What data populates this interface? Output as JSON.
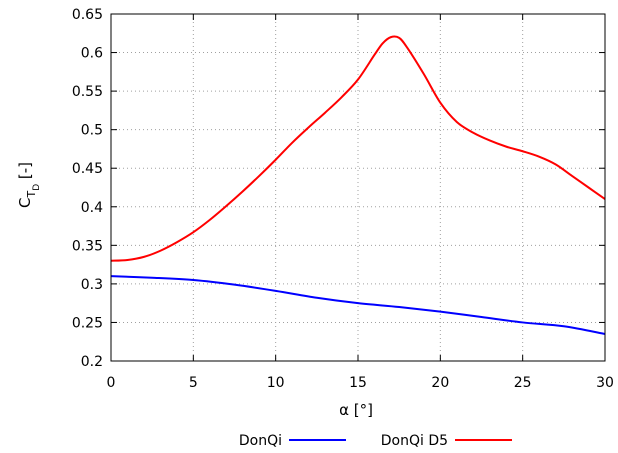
{
  "chart_data": {
    "type": "line",
    "title": "",
    "xlabel": "α [°]",
    "ylabel": {
      "main": "C",
      "sub": "T",
      "subsub": "D",
      "suffix": " [-]"
    },
    "xlim": [
      0,
      30
    ],
    "ylim": [
      0.2,
      0.65
    ],
    "x_ticks": [
      0,
      5,
      10,
      15,
      20,
      25,
      30
    ],
    "x_tick_labels": [
      "0",
      "5",
      "10",
      "15",
      "20",
      "25",
      "30"
    ],
    "y_ticks": [
      0.2,
      0.25,
      0.3,
      0.35,
      0.4,
      0.45,
      0.5,
      0.55,
      0.6,
      0.65
    ],
    "y_tick_labels": [
      "0.2",
      "0.25",
      "0.3",
      "0.35",
      "0.4",
      "0.45",
      "0.5",
      "0.55",
      "0.6",
      "0.65"
    ],
    "grid": true,
    "legend_position": "bottom",
    "series": [
      {
        "name": "DonQi",
        "color": "#0000ff",
        "x": [
          0,
          2.5,
          5,
          7.5,
          10,
          12.5,
          15,
          17.5,
          20,
          22.5,
          25,
          27.5,
          30
        ],
        "y": [
          0.31,
          0.308,
          0.305,
          0.299,
          0.291,
          0.282,
          0.275,
          0.27,
          0.264,
          0.257,
          0.25,
          0.245,
          0.235
        ]
      },
      {
        "name": "DonQi D5",
        "color": "#ff0000",
        "x": [
          0,
          1,
          2,
          3,
          4,
          5,
          6,
          7,
          8,
          9,
          10,
          11,
          12,
          13,
          14,
          15,
          16,
          16.5,
          17,
          17.5,
          18,
          19,
          20,
          21,
          22,
          23,
          24,
          25,
          26,
          27,
          28,
          29,
          30
        ],
        "y": [
          0.33,
          0.331,
          0.335,
          0.343,
          0.354,
          0.367,
          0.383,
          0.401,
          0.42,
          0.44,
          0.461,
          0.483,
          0.503,
          0.522,
          0.542,
          0.565,
          0.597,
          0.612,
          0.62,
          0.619,
          0.606,
          0.572,
          0.535,
          0.51,
          0.496,
          0.486,
          0.478,
          0.472,
          0.465,
          0.455,
          0.44,
          0.425,
          0.41
        ]
      }
    ]
  }
}
